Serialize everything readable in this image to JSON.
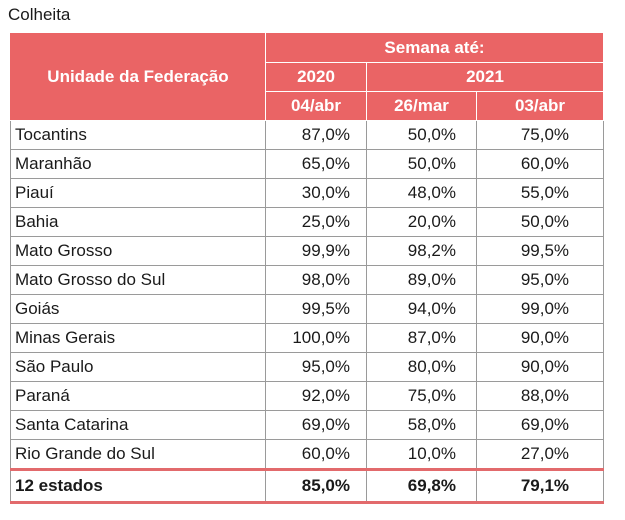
{
  "caption": "Colheita",
  "table": {
    "header": {
      "unit_label": "Unidade da Federação",
      "week_label": "Semana até:",
      "years": [
        "2020",
        "2021"
      ],
      "dates": [
        "04/abr",
        "26/mar",
        "03/abr"
      ]
    },
    "rows": [
      {
        "name": "Tocantins",
        "v": [
          "87,0%",
          "50,0%",
          "75,0%"
        ]
      },
      {
        "name": "Maranhão",
        "v": [
          "65,0%",
          "50,0%",
          "60,0%"
        ]
      },
      {
        "name": "Piauí",
        "v": [
          "30,0%",
          "48,0%",
          "55,0%"
        ]
      },
      {
        "name": "Bahia",
        "v": [
          "25,0%",
          "20,0%",
          "50,0%"
        ]
      },
      {
        "name": "Mato Grosso",
        "v": [
          "99,9%",
          "98,2%",
          "99,5%"
        ]
      },
      {
        "name": "Mato Grosso do Sul",
        "v": [
          "98,0%",
          "89,0%",
          "95,0%"
        ]
      },
      {
        "name": "Goiás",
        "v": [
          "99,5%",
          "94,0%",
          "99,0%"
        ]
      },
      {
        "name": "Minas Gerais",
        "v": [
          "100,0%",
          "87,0%",
          "90,0%"
        ]
      },
      {
        "name": "São Paulo",
        "v": [
          "95,0%",
          "80,0%",
          "90,0%"
        ]
      },
      {
        "name": "Paraná",
        "v": [
          "92,0%",
          "75,0%",
          "88,0%"
        ]
      },
      {
        "name": "Santa Catarina",
        "v": [
          "69,0%",
          "58,0%",
          "69,0%"
        ]
      },
      {
        "name": "Rio Grande do Sul",
        "v": [
          "60,0%",
          "10,0%",
          "27,0%"
        ]
      }
    ],
    "total": {
      "name": "12 estados",
      "v": [
        "85,0%",
        "69,8%",
        "79,1%"
      ]
    }
  },
  "colors": {
    "header_bg": "#ea6465",
    "header_text": "#ffffff",
    "total_rule": "#e26a6c"
  }
}
